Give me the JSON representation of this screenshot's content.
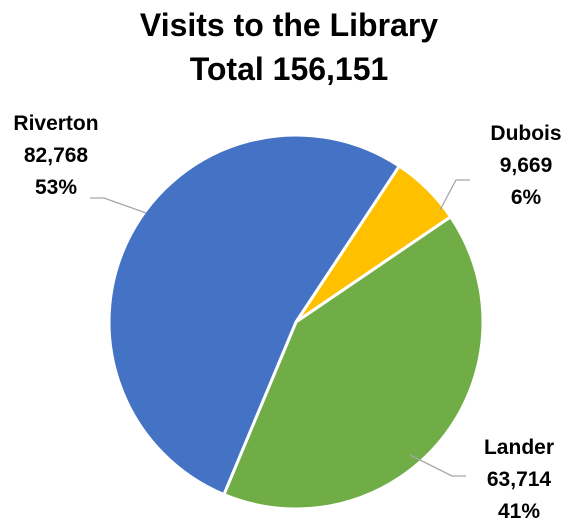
{
  "chart_data": {
    "type": "pie",
    "title": "Visits to the Library",
    "subtitle": "Total 156,151",
    "slices": [
      {
        "name": "Dubois",
        "value": 9669,
        "value_label": "9,669",
        "percent_label": "6%",
        "color": "#FFC000"
      },
      {
        "name": "Lander",
        "value": 63714,
        "value_label": "63,714",
        "percent_label": "41%",
        "color": "#70AD47"
      },
      {
        "name": "Riverton",
        "value": 82768,
        "value_label": "82,768",
        "percent_label": "53%",
        "color": "#4472C4"
      }
    ],
    "legend": "none",
    "data_labels": "outside with leader lines"
  }
}
